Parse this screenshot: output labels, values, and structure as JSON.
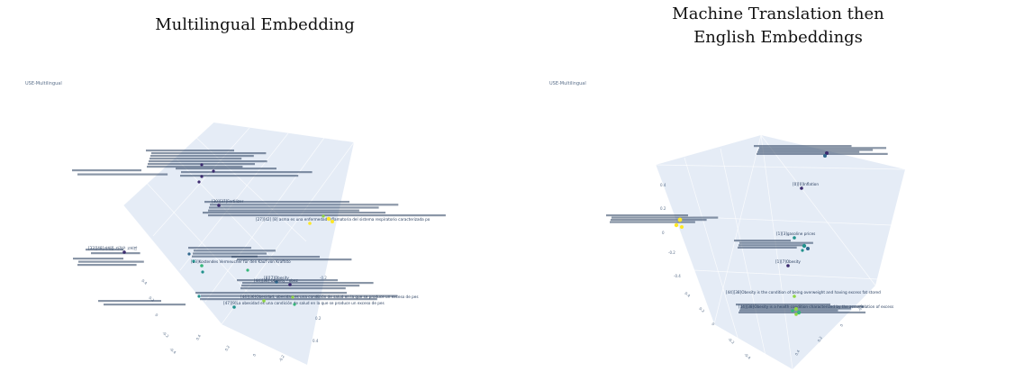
{
  "panels": [
    {
      "title": "Multilingual Embedding",
      "plot_label": "USE-Multilingual"
    },
    {
      "title": "Machine Translation then\nEnglish Embeddings",
      "plot_label": "USE-Multilingual"
    }
  ],
  "colors": {
    "scene_bg": "#e5ecf6",
    "text": "#2a3f5f",
    "tick": "#5a6f8a",
    "point_colors": [
      "#3b2a6e",
      "#31688e",
      "#21918c",
      "#35b779",
      "#90d743",
      "#fde725"
    ]
  },
  "chart_data": [
    {
      "type": "scatter",
      "title": "Multilingual Embedding",
      "subtitle": "USE-Multilingual",
      "projection": "3d",
      "legend": "none",
      "points": [
        {
          "label": "[30][37]Fertilizer",
          "color": 0
        },
        {
          "label": "[27][42] [8] asma es una enfermedad inflamatoria del sistema respiratorio caracterizada po",
          "color": 5
        },
        {
          "label": "[33][48]과체중 가격은 고비만",
          "color": 0
        },
        {
          "label": "[23]Kostendes Vermeucher für den Kauf von Kraftsto",
          "color": 3
        },
        {
          "label": "[8][7]Obesity",
          "color": 1
        },
        {
          "label": "[44][36] Obesity - obez",
          "color": 0
        },
        {
          "label": "[44][36]Obesidad, obesidad es una condición de salud en la que se produce un exceso de pes",
          "color": 4
        },
        {
          "label": "[47][9]La obesidad es una condición de salud en la que se produce un exceso de pes",
          "color": 2
        }
      ]
    },
    {
      "type": "scatter",
      "title": "Machine Translation then English Embeddings",
      "subtitle": "USE-Multilingual",
      "projection": "3d",
      "legend": "none",
      "points": [
        {
          "label": "[0][0]Inflation",
          "color": 0
        },
        {
          "label": "[1][3]gasoline prices",
          "color": 2
        },
        {
          "label": "[1][7]Obesity",
          "color": 0
        },
        {
          "label": "[44][38]Obesity is the condition of being overweight and having excess fat stored",
          "color": 4
        },
        {
          "label": "[44][38]Obesity is a health condition characterized by the accumulation of excess",
          "color": 3
        }
      ]
    }
  ]
}
